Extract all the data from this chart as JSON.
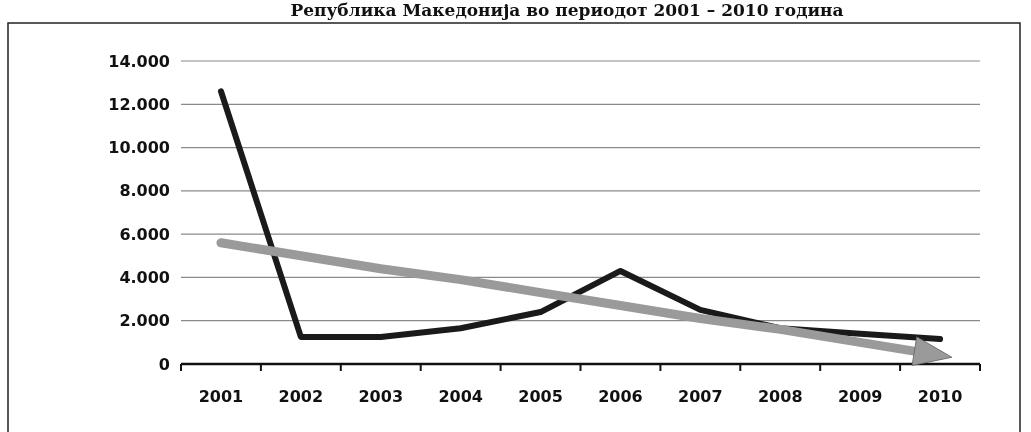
{
  "chart_data": {
    "type": "line",
    "title": "Република Македонија во периодот 2001 – 2010 година",
    "categories": [
      "2001",
      "2002",
      "2003",
      "2004",
      "2005",
      "2006",
      "2007",
      "2008",
      "2009",
      "2010"
    ],
    "series": [
      {
        "color": "#1a1a1a",
        "values": [
          12600,
          1250,
          1250,
          1650,
          2400,
          4300,
          2500,
          1650,
          1400,
          1150
        ]
      },
      {
        "type": "line",
        "color": "#9a9a9a",
        "values": [
          5600,
          5000,
          4400,
          3900,
          3300,
          2700,
          2100,
          1600,
          1000,
          400
        ]
      }
    ],
    "ylim": [
      0,
      14000
    ],
    "yticks": [
      {
        "value": 0,
        "label": "0"
      },
      {
        "value": 2000,
        "label": "2.000"
      },
      {
        "value": 4000,
        "label": "4.000"
      },
      {
        "value": 6000,
        "label": "6.000"
      },
      {
        "value": 8000,
        "label": "8.000"
      },
      {
        "value": 10000,
        "label": "10.000"
      },
      {
        "value": 12000,
        "label": "12.000"
      },
      {
        "value": 14000,
        "label": "14.000"
      }
    ],
    "grid": "y"
  }
}
